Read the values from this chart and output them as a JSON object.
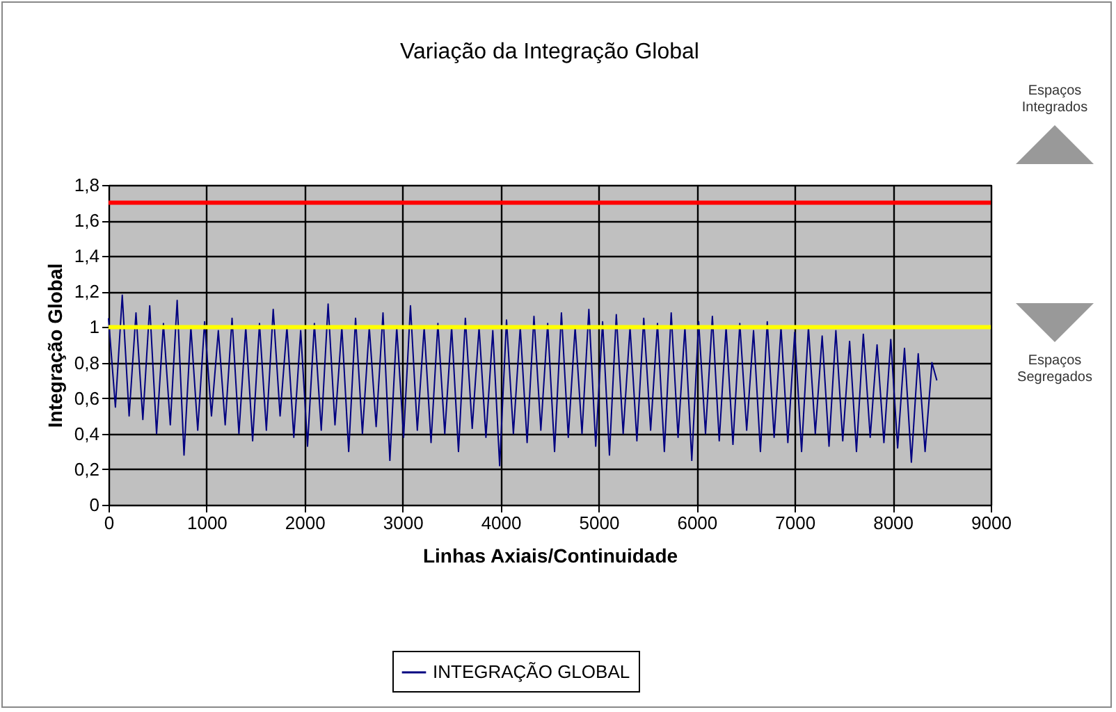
{
  "chart_data": {
    "type": "line",
    "title": "Variação da Integração Global",
    "xlabel": "Linhas Axiais/Continuidade",
    "ylabel": "Integração Global",
    "xlim": [
      0,
      9000
    ],
    "xticks": [
      0,
      1000,
      2000,
      3000,
      4000,
      5000,
      6000,
      7000,
      8000,
      9000
    ],
    "ylim": [
      0,
      1.8
    ],
    "yticks": [
      0,
      {
        "value": 0.2,
        "label": "0,2"
      },
      {
        "value": 0.4,
        "label": "0,4"
      },
      {
        "value": 0.6,
        "label": "0,6"
      },
      {
        "value": 0.8,
        "label": "0,8"
      },
      1,
      {
        "value": 1.2,
        "label": "1,2"
      },
      {
        "value": 1.4,
        "label": "1,4"
      },
      {
        "value": 1.6,
        "label": "1,6"
      },
      {
        "value": 1.8,
        "label": "1,8"
      }
    ],
    "grid": true,
    "legend": "bottom",
    "marker": "none",
    "line_style": "solid",
    "x": [
      0,
      70,
      140,
      210,
      280,
      350,
      420,
      490,
      560,
      630,
      700,
      770,
      840,
      910,
      980,
      1050,
      1120,
      1190,
      1260,
      1330,
      1400,
      1470,
      1540,
      1610,
      1680,
      1750,
      1820,
      1890,
      1960,
      2030,
      2100,
      2170,
      2240,
      2310,
      2380,
      2450,
      2520,
      2590,
      2660,
      2730,
      2800,
      2870,
      2940,
      3010,
      3080,
      3150,
      3220,
      3290,
      3360,
      3430,
      3500,
      3570,
      3640,
      3710,
      3780,
      3850,
      3920,
      3990,
      4060,
      4130,
      4200,
      4270,
      4340,
      4410,
      4480,
      4550,
      4620,
      4690,
      4760,
      4830,
      4900,
      4970,
      5040,
      5110,
      5180,
      5250,
      5320,
      5390,
      5460,
      5530,
      5600,
      5670,
      5740,
      5810,
      5880,
      5950,
      6020,
      6090,
      6160,
      6230,
      6300,
      6370,
      6440,
      6510,
      6580,
      6650,
      6720,
      6790,
      6860,
      6930,
      7000,
      7070,
      7140,
      7210,
      7280,
      7350,
      7420,
      7490,
      7560,
      7630,
      7700,
      7770,
      7840,
      7910,
      7980,
      8050,
      8120,
      8190,
      8260,
      8330,
      8400,
      8450
    ],
    "series": [
      {
        "name": "INTEGRAÇÃO GLOBAL",
        "color": "#000080",
        "values": [
          1.05,
          0.55,
          1.18,
          0.5,
          1.08,
          0.48,
          1.12,
          0.4,
          1.02,
          0.45,
          1.15,
          0.28,
          1.0,
          0.42,
          1.03,
          0.5,
          0.98,
          0.45,
          1.05,
          0.4,
          1.0,
          0.36,
          1.02,
          0.42,
          1.1,
          0.5,
          1.0,
          0.38,
          0.98,
          0.33,
          1.02,
          0.42,
          1.13,
          0.45,
          1.0,
          0.3,
          1.05,
          0.4,
          1.0,
          0.44,
          1.08,
          0.25,
          1.0,
          0.38,
          1.12,
          0.42,
          1.0,
          0.35,
          1.02,
          0.4,
          1.0,
          0.3,
          1.05,
          0.43,
          1.0,
          0.38,
          0.98,
          0.22,
          1.04,
          0.4,
          1.0,
          0.35,
          1.06,
          0.42,
          1.02,
          0.3,
          1.08,
          0.38,
          1.0,
          0.4,
          1.1,
          0.33,
          1.03,
          0.28,
          1.07,
          0.4,
          1.0,
          0.36,
          1.05,
          0.42,
          1.02,
          0.3,
          1.08,
          0.38,
          1.0,
          0.25,
          1.03,
          0.4,
          1.06,
          0.36,
          1.0,
          0.34,
          1.02,
          0.42,
          0.98,
          0.3,
          1.03,
          0.38,
          1.0,
          0.35,
          0.97,
          0.3,
          1.0,
          0.4,
          0.95,
          0.33,
          0.98,
          0.36,
          0.92,
          0.3,
          0.96,
          0.38,
          0.9,
          0.35,
          0.93,
          0.32,
          0.88,
          0.24,
          0.85,
          0.3,
          0.8,
          0.7
        ]
      }
    ],
    "ref_lines": [
      {
        "axis": "y",
        "value": 1.7,
        "color": "#ff0000"
      },
      {
        "axis": "y",
        "value": 1,
        "color": "#ffff00"
      }
    ],
    "annotations": [
      "Espaços Integrados",
      "Espaços Segregados"
    ]
  }
}
